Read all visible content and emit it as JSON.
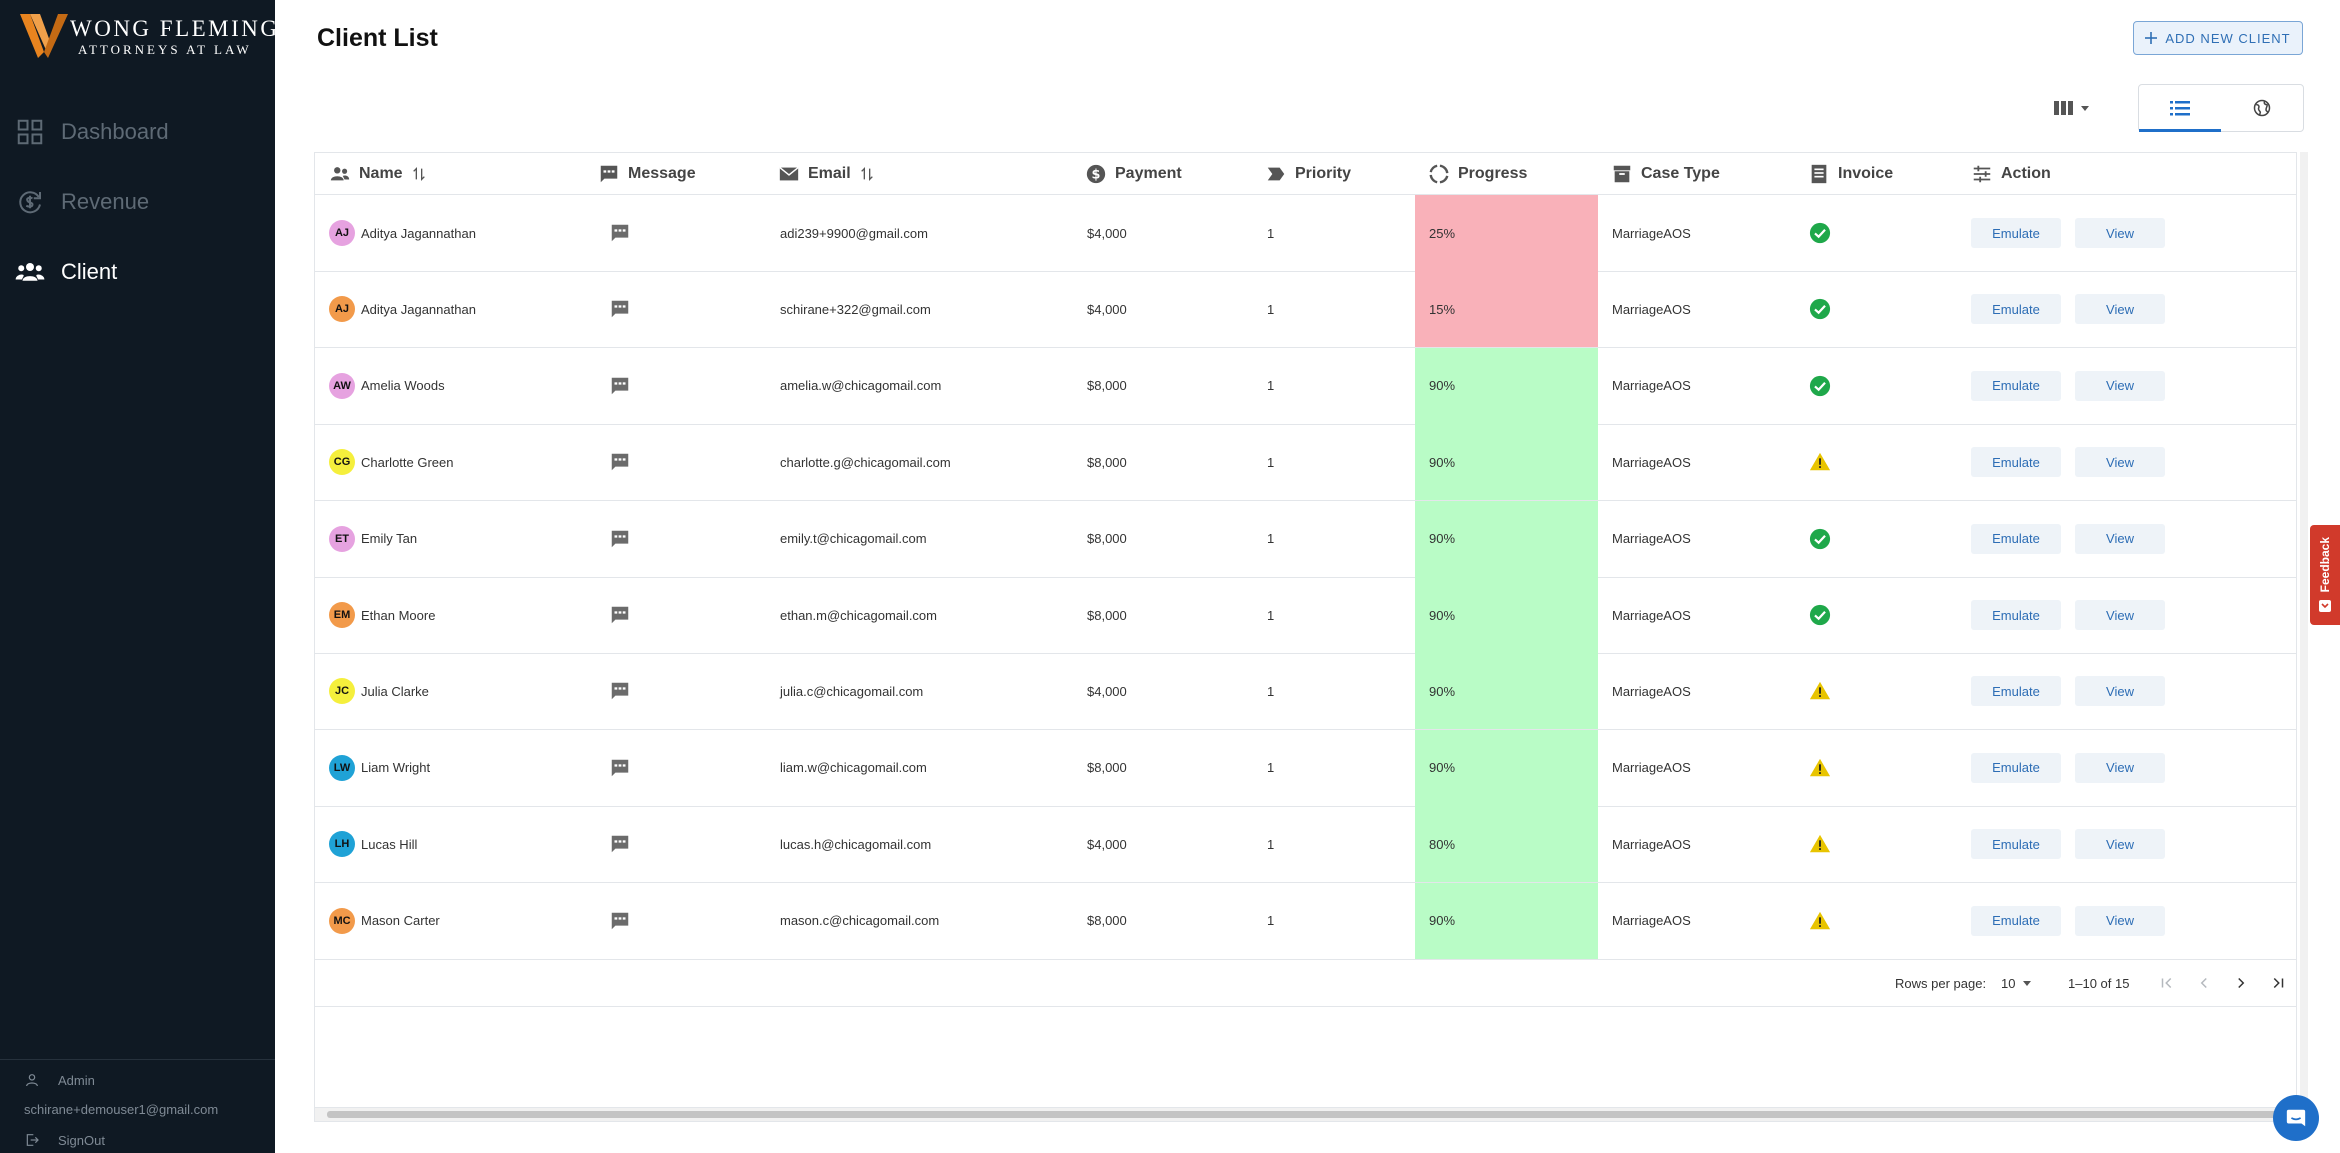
{
  "brand": {
    "name": "WONG FLEMING",
    "tagline": "ATTORNEYS AT LAW",
    "accent": "#e8841f"
  },
  "sidebar": {
    "items": [
      {
        "label": "Dashboard",
        "icon": "grid-icon",
        "active": false
      },
      {
        "label": "Revenue",
        "icon": "revenue-icon",
        "active": false
      },
      {
        "label": "Client",
        "icon": "users-icon",
        "active": true
      }
    ],
    "user": {
      "role": "Admin",
      "email": "schirane+demouser1@gmail.com",
      "signout_label": "SignOut"
    }
  },
  "header": {
    "title": "Client List",
    "add_button": "ADD NEW CLIENT"
  },
  "table": {
    "columns": {
      "name": "Name",
      "message": "Message",
      "email": "Email",
      "payment": "Payment",
      "priority": "Priority",
      "progress": "Progress",
      "case_type": "Case Type",
      "invoice": "Invoice",
      "action": "Action"
    },
    "rows": [
      {
        "initials": "AJ",
        "avatar_color": "#e6a2e0",
        "name": "Aditya Jagannathan",
        "email": "adi239+9900@gmail.com",
        "payment": "$4,000",
        "priority": "1",
        "progress": "25%",
        "progress_color": "#f9b1b9",
        "case_type": "MarriageAOS",
        "invoice": "ok"
      },
      {
        "initials": "AJ",
        "avatar_color": "#f29a4a",
        "name": "Aditya Jagannathan",
        "email": "schirane+322@gmail.com",
        "payment": "$4,000",
        "priority": "1",
        "progress": "15%",
        "progress_color": "#f9b1b9",
        "case_type": "MarriageAOS",
        "invoice": "ok"
      },
      {
        "initials": "AW",
        "avatar_color": "#e6a2e0",
        "name": "Amelia Woods",
        "email": "amelia.w@chicagomail.com",
        "payment": "$8,000",
        "priority": "1",
        "progress": "90%",
        "progress_color": "#b9fcc6",
        "case_type": "MarriageAOS",
        "invoice": "ok"
      },
      {
        "initials": "CG",
        "avatar_color": "#f5ef3c",
        "name": "Charlotte Green",
        "email": "charlotte.g@chicagomail.com",
        "payment": "$8,000",
        "priority": "1",
        "progress": "90%",
        "progress_color": "#b9fcc6",
        "case_type": "MarriageAOS",
        "invoice": "warn"
      },
      {
        "initials": "ET",
        "avatar_color": "#e6a2e0",
        "name": "Emily Tan",
        "email": "emily.t@chicagomail.com",
        "payment": "$8,000",
        "priority": "1",
        "progress": "90%",
        "progress_color": "#b9fcc6",
        "case_type": "MarriageAOS",
        "invoice": "ok"
      },
      {
        "initials": "EM",
        "avatar_color": "#f29a4a",
        "name": "Ethan Moore",
        "email": "ethan.m@chicagomail.com",
        "payment": "$8,000",
        "priority": "1",
        "progress": "90%",
        "progress_color": "#b9fcc6",
        "case_type": "MarriageAOS",
        "invoice": "ok"
      },
      {
        "initials": "JC",
        "avatar_color": "#f5ef3c",
        "name": "Julia Clarke",
        "email": "julia.c@chicagomail.com",
        "payment": "$4,000",
        "priority": "1",
        "progress": "90%",
        "progress_color": "#b9fcc6",
        "case_type": "MarriageAOS",
        "invoice": "warn"
      },
      {
        "initials": "LW",
        "avatar_color": "#1fa2d6",
        "name": "Liam Wright",
        "email": "liam.w@chicagomail.com",
        "payment": "$8,000",
        "priority": "1",
        "progress": "90%",
        "progress_color": "#b9fcc6",
        "case_type": "MarriageAOS",
        "invoice": "warn"
      },
      {
        "initials": "LH",
        "avatar_color": "#1fa2d6",
        "name": "Lucas Hill",
        "email": "lucas.h@chicagomail.com",
        "payment": "$4,000",
        "priority": "1",
        "progress": "80%",
        "progress_color": "#b9fcc6",
        "case_type": "MarriageAOS",
        "invoice": "warn"
      },
      {
        "initials": "MC",
        "avatar_color": "#f29a4a",
        "name": "Mason Carter",
        "email": "mason.c@chicagomail.com",
        "payment": "$8,000",
        "priority": "1",
        "progress": "90%",
        "progress_color": "#b9fcc6",
        "case_type": "MarriageAOS",
        "invoice": "warn"
      }
    ],
    "action_labels": {
      "emulate": "Emulate",
      "view": "View"
    },
    "pagination": {
      "rows_per_page_label": "Rows per page:",
      "rows_per_page": "10",
      "range": "1–10 of 15"
    }
  },
  "status_colors": {
    "ok": "#1fa84a",
    "warn": "#e8c400",
    "link": "#2d6db5"
  },
  "feedback": {
    "label": "Feedback"
  }
}
